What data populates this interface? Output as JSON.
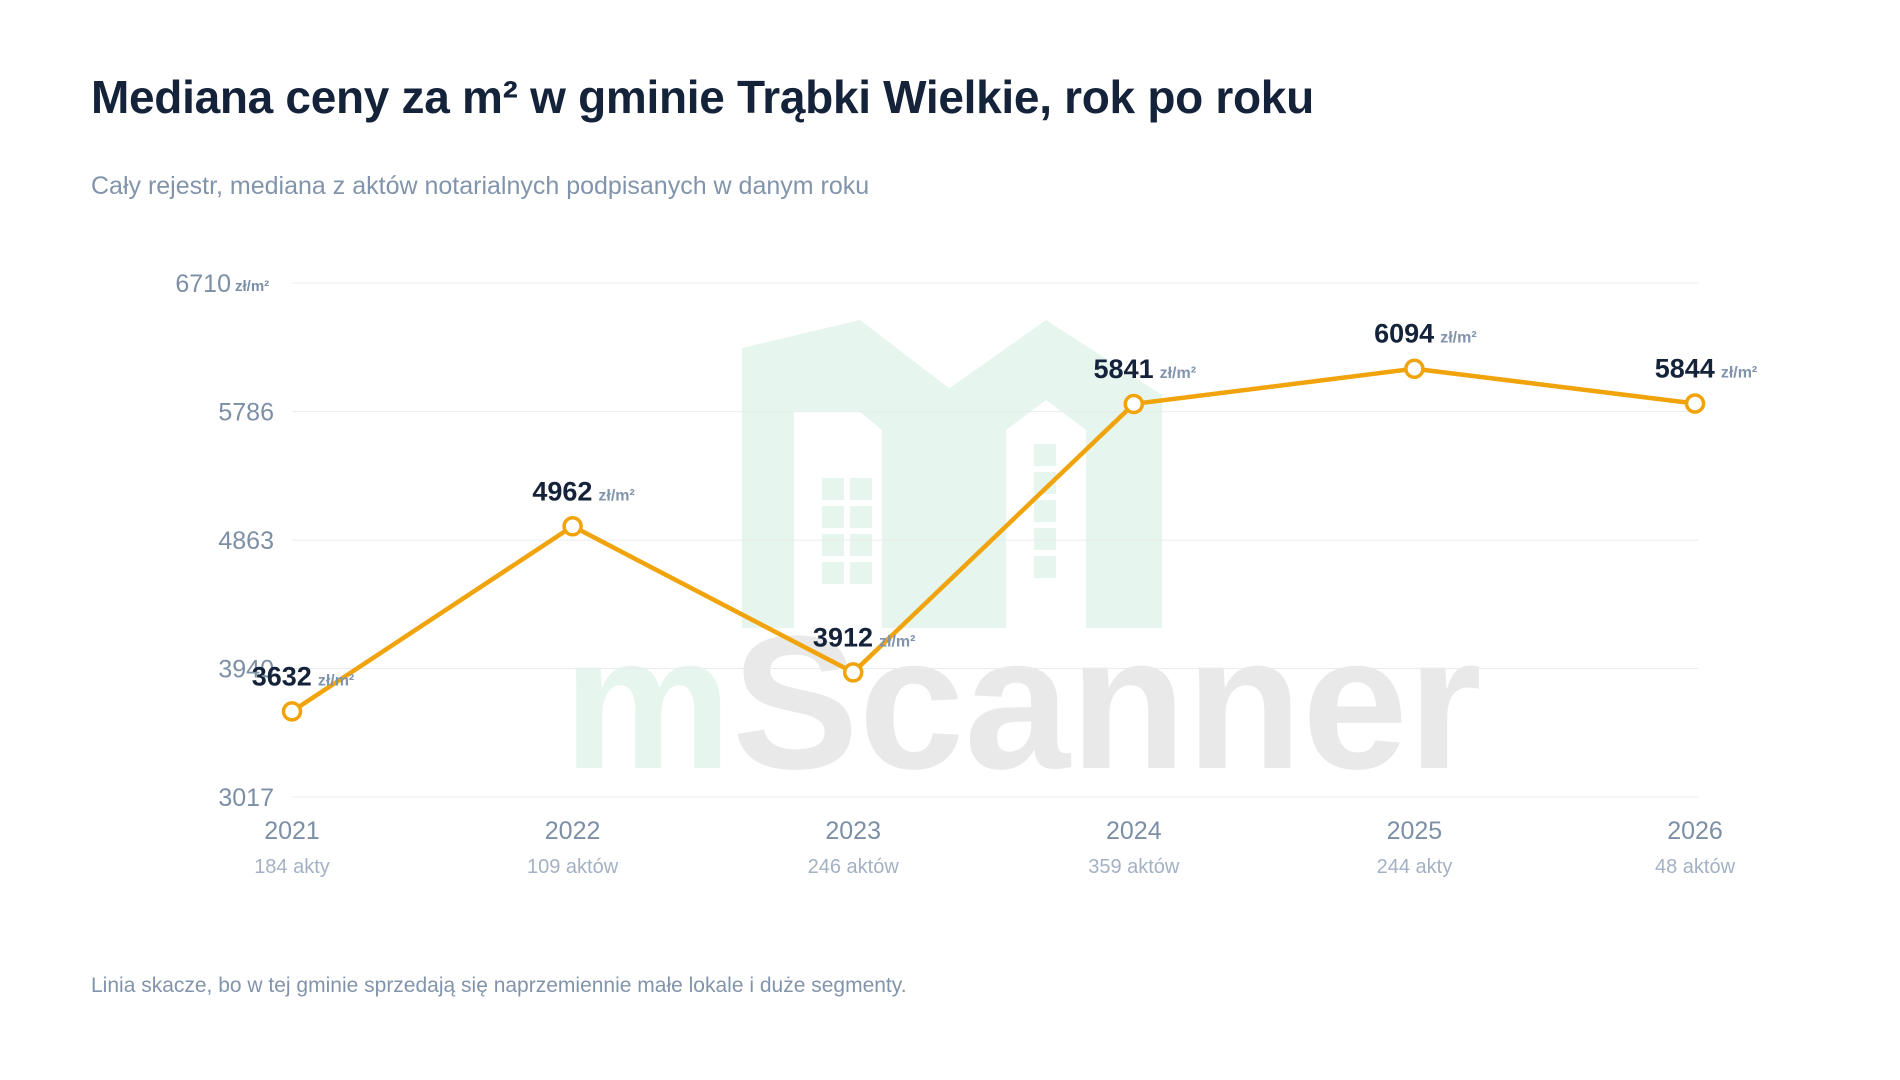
{
  "title": "Mediana ceny za m² w gminie Trąbki Wielkie, rok po roku",
  "subtitle": "Cały rejestr, mediana z aktów notarialnych podpisanych w danym roku",
  "footnote": "Linia skacze, bo w tej gminie sprzedają się naprzemiennie małe lokale i duże segmenty.",
  "watermark": {
    "prefix": "m",
    "name": "Scanner",
    "icon": "house-logo-icon",
    "colors": {
      "logo": "#e6f5ee",
      "prefix": "#e6f5ee",
      "name": "#e9e9e9"
    }
  },
  "chart_data": {
    "type": "line",
    "categories": [
      "2021",
      "2022",
      "2023",
      "2024",
      "2025",
      "2026"
    ],
    "counts": [
      "184 akty",
      "109 aktów",
      "246 aktów",
      "359 aktów",
      "244 akty",
      "48 aktów"
    ],
    "series": [
      {
        "values": [
          3632,
          4962,
          3912,
          5841,
          6094,
          5844
        ]
      }
    ],
    "unit": "zł/m²",
    "yticks": [
      3017,
      3940,
      4863,
      5786,
      6710
    ],
    "ylim": [
      3017,
      6710
    ],
    "grid": true,
    "colors": {
      "line": "#f0a30a",
      "grid": "#e8ecf0"
    }
  }
}
